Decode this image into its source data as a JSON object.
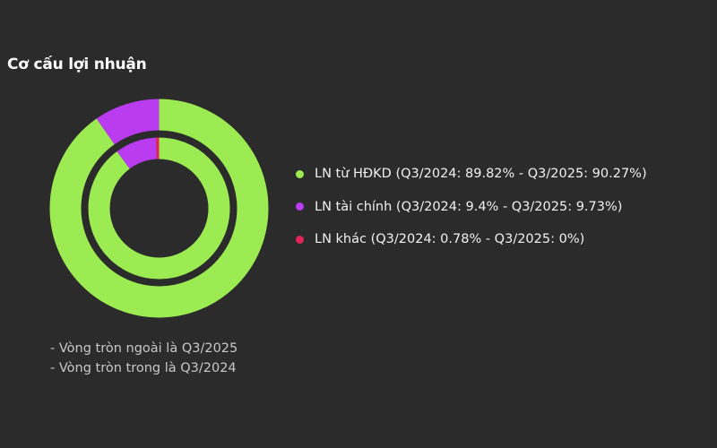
{
  "title": "Cơ cấu lợi nhuận",
  "chart_data": {
    "type": "pie",
    "title": "Cơ cấu lợi nhuận",
    "categories": [
      "LN từ HĐKD",
      "LN tài chính",
      "LN khác"
    ],
    "colors": [
      "#9ceb52",
      "#b93cf0",
      "#e2245b"
    ],
    "series": [
      {
        "ring": "outer",
        "values": [
          90.27,
          9.73,
          0
        ]
      },
      {
        "ring": "inner",
        "values": [
          89.82,
          9.4,
          0.78
        ]
      }
    ],
    "legend_position": "right"
  },
  "legend": [
    {
      "label": "LN từ HĐKD (Q3/2024: 89.82% - Q3/2025: 90.27%)",
      "color": "#9ceb52"
    },
    {
      "label": "LN tài chính (Q3/2024: 9.4% - Q3/2025: 9.73%)",
      "color": "#b93cf0"
    },
    {
      "label": "LN khác (Q3/2024: 0.78% - Q3/2025: 0%)",
      "color": "#e2245b"
    }
  ],
  "notes": [
    "- Vòng tròn ngoài là Q3/2025",
    "- Vòng tròn trong là Q3/2024"
  ]
}
